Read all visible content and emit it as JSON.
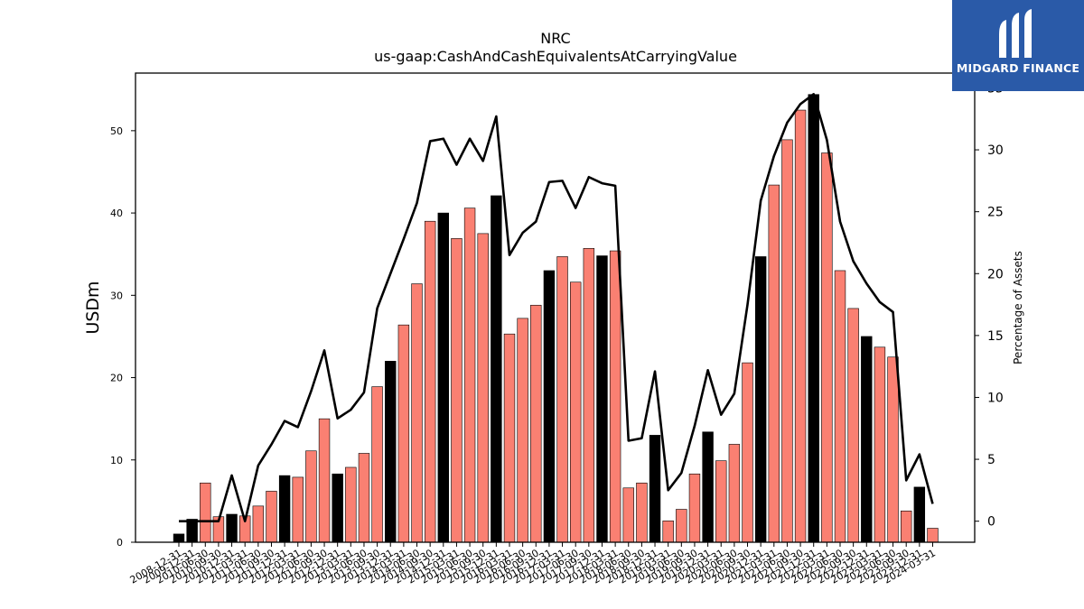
{
  "logo": {
    "text": "MIDGARD FINANCE",
    "background": "#2a5aa8",
    "icon": "midgard-m-logo-icon"
  },
  "chart_data": {
    "type": "bar",
    "title": "NRC",
    "subtitle": "us-gaap:CashAndCashEquivalentsAtCarryingValue",
    "ylabel": "USDm",
    "y2label": "Percentage of Assets",
    "ylim": [
      0,
      57
    ],
    "y2lim": [
      -1.7,
      36.2
    ],
    "yticks": [
      0,
      10,
      20,
      30,
      40,
      50
    ],
    "y2ticks": [
      0,
      5,
      10,
      15,
      20,
      25,
      30,
      35
    ],
    "colors": {
      "bar": "#fa8072",
      "bar_q4": "#000000",
      "line": "#000000"
    },
    "categories": [
      "2008-12-31",
      "2009-12-31",
      "2010-06-30",
      "2010-09-30",
      "2010-12-31",
      "2011-03-31",
      "2011-06-30",
      "2011-09-30",
      "2011-12-31",
      "2012-03-31",
      "2012-06-30",
      "2012-09-30",
      "2012-12-31",
      "2013-03-31",
      "2013-06-30",
      "2013-09-30",
      "2013-12-31",
      "2014-03-31",
      "2014-06-30",
      "2014-09-30",
      "2014-12-31",
      "2015-03-31",
      "2015-06-30",
      "2015-09-30",
      "2015-12-31",
      "2016-03-31",
      "2016-06-30",
      "2016-09-30",
      "2016-12-31",
      "2017-03-31",
      "2017-06-30",
      "2017-09-30",
      "2017-12-31",
      "2018-03-31",
      "2018-06-30",
      "2018-09-30",
      "2018-12-31",
      "2019-03-31",
      "2019-06-30",
      "2019-09-30",
      "2019-12-31",
      "2020-03-31",
      "2020-06-30",
      "2020-09-30",
      "2020-12-31",
      "2021-03-31",
      "2021-06-30",
      "2021-09-30",
      "2021-12-31",
      "2022-03-31",
      "2022-06-30",
      "2022-09-30",
      "2022-12-31",
      "2023-03-31",
      "2023-06-30",
      "2023-09-30",
      "2023-12-31",
      "2024-03-31"
    ],
    "series": [
      {
        "type": "bar",
        "axis": "left",
        "values": [
          1.0,
          2.8,
          7.2,
          3.1,
          3.4,
          3.2,
          4.4,
          6.2,
          8.1,
          7.9,
          11.1,
          15.0,
          8.3,
          9.1,
          10.8,
          18.9,
          22.0,
          26.4,
          31.4,
          39.0,
          40.0,
          36.9,
          40.6,
          37.5,
          42.1,
          25.3,
          27.2,
          28.8,
          33.0,
          34.7,
          31.6,
          35.7,
          34.8,
          35.4,
          6.6,
          7.2,
          13.0,
          2.6,
          4.0,
          8.3,
          13.4,
          9.9,
          11.9,
          21.8,
          34.7,
          43.4,
          48.9,
          52.5,
          54.4,
          47.3,
          33.0,
          28.4,
          25.0,
          23.7,
          22.5,
          3.8,
          6.7,
          1.7
        ]
      },
      {
        "type": "line",
        "axis": "right",
        "values": [
          0.0,
          0.0,
          0.0,
          0.0,
          3.7,
          0.0,
          4.5,
          6.2,
          8.1,
          7.6,
          10.5,
          13.8,
          8.3,
          9.0,
          10.4,
          17.2,
          20.0,
          22.8,
          25.7,
          30.7,
          30.9,
          28.8,
          30.9,
          29.1,
          32.7,
          21.5,
          23.3,
          24.2,
          27.4,
          27.5,
          25.3,
          27.8,
          27.3,
          27.1,
          6.5,
          6.7,
          12.1,
          2.5,
          3.9,
          7.7,
          12.2,
          8.6,
          10.3,
          17.5,
          25.9,
          29.5,
          32.2,
          33.7,
          34.5,
          30.8,
          24.2,
          21.0,
          19.2,
          17.7,
          16.9,
          3.3,
          5.4,
          1.4
        ]
      }
    ]
  }
}
